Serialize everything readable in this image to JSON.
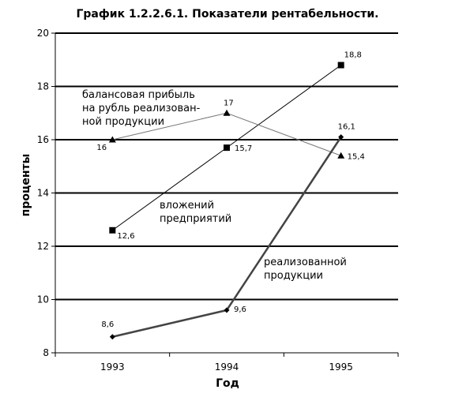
{
  "chart_data": {
    "type": "line",
    "title": "График 1.2.2.6.1.  Показатели рентабельности.",
    "xlabel": "Год",
    "ylabel": "проценты",
    "categories": [
      "1993",
      "1994",
      "1995"
    ],
    "ylim": [
      8,
      20
    ],
    "yticks": [
      "8",
      "10",
      "12",
      "14",
      "16",
      "18",
      "20"
    ],
    "grid": true,
    "series": [
      {
        "marker": "square",
        "values": [
          12.6,
          15.7,
          18.8
        ],
        "labels": [
          "12,6",
          "15,7",
          "18,8"
        ],
        "annotation": [
          "вложений",
          "предприятий"
        ]
      },
      {
        "marker": "triangle",
        "values": [
          16,
          17,
          15.4
        ],
        "labels": [
          "16",
          "17",
          "15,4"
        ],
        "annotation": [
          "балансовая прибыль",
          "на рубль реализован-",
          "ной продукции"
        ]
      },
      {
        "marker": "diamond",
        "values": [
          8.6,
          9.6,
          16.1
        ],
        "labels": [
          "8,6",
          "9,6",
          "16,1"
        ],
        "annotation": [
          "реализованной",
          "продукции"
        ]
      }
    ]
  }
}
